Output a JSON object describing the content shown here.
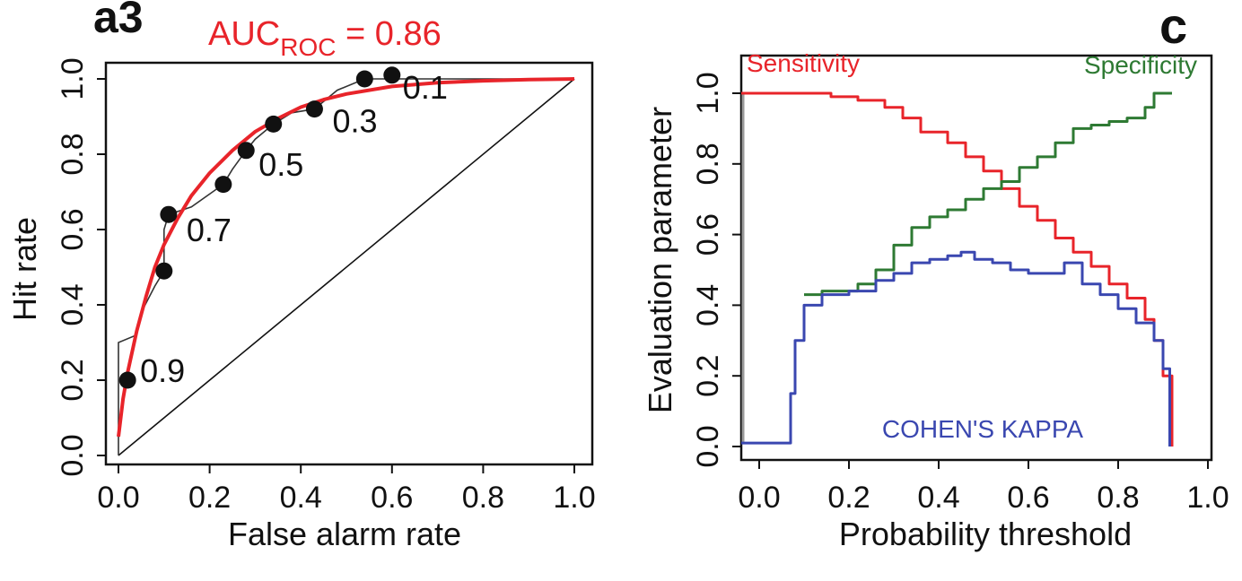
{
  "panels": {
    "a3_label": "a3",
    "c_label": "c"
  },
  "auc": {
    "prefix": "AUC",
    "subscript": "ROC",
    "suffix": " = 0.86"
  },
  "colors": {
    "red": "#e8242a",
    "green": "#2e7a33",
    "blue": "#3a47b0",
    "black": "#111111",
    "gray": "#666666"
  },
  "chart_data": [
    {
      "type": "line",
      "panel": "a3",
      "xlabel": "False alarm rate",
      "ylabel": "Hit rate",
      "xlim": [
        0,
        1
      ],
      "ylim": [
        0,
        1
      ],
      "xticks": [
        "0.0",
        "0.2",
        "0.4",
        "0.6",
        "0.8",
        "1.0"
      ],
      "yticks": [
        "0.0",
        "0.2",
        "0.4",
        "0.6",
        "0.8",
        "1.0"
      ],
      "annotation": "AUC_ROC = 0.86",
      "points": [
        {
          "x": 0.02,
          "y": 0.2,
          "label": "0.9"
        },
        {
          "x": 0.1,
          "y": 0.49,
          "label": ""
        },
        {
          "x": 0.11,
          "y": 0.64,
          "label": "0.7"
        },
        {
          "x": 0.23,
          "y": 0.72,
          "label": ""
        },
        {
          "x": 0.28,
          "y": 0.81,
          "label": "0.5"
        },
        {
          "x": 0.34,
          "y": 0.88,
          "label": ""
        },
        {
          "x": 0.43,
          "y": 0.92,
          "label": "0.3"
        },
        {
          "x": 0.54,
          "y": 1.0,
          "label": ""
        },
        {
          "x": 0.6,
          "y": 1.01,
          "label": "0.1"
        }
      ],
      "empirical_curve": [
        [
          0.0,
          0.0
        ],
        [
          0.0,
          0.3
        ],
        [
          0.04,
          0.32
        ],
        [
          0.05,
          0.38
        ],
        [
          0.08,
          0.45
        ],
        [
          0.1,
          0.49
        ],
        [
          0.1,
          0.6
        ],
        [
          0.11,
          0.64
        ],
        [
          0.16,
          0.66
        ],
        [
          0.23,
          0.72
        ],
        [
          0.25,
          0.76
        ],
        [
          0.28,
          0.81
        ],
        [
          0.3,
          0.84
        ],
        [
          0.34,
          0.88
        ],
        [
          0.38,
          0.91
        ],
        [
          0.43,
          0.92
        ],
        [
          0.48,
          0.97
        ],
        [
          0.54,
          1.0
        ],
        [
          0.6,
          1.0
        ],
        [
          1.0,
          1.0
        ]
      ],
      "fitted_curve": [
        [
          0.0,
          0.05
        ],
        [
          0.01,
          0.15
        ],
        [
          0.02,
          0.22
        ],
        [
          0.04,
          0.33
        ],
        [
          0.06,
          0.42
        ],
        [
          0.08,
          0.5
        ],
        [
          0.1,
          0.56
        ],
        [
          0.13,
          0.63
        ],
        [
          0.16,
          0.69
        ],
        [
          0.2,
          0.75
        ],
        [
          0.25,
          0.81
        ],
        [
          0.3,
          0.86
        ],
        [
          0.35,
          0.895
        ],
        [
          0.4,
          0.925
        ],
        [
          0.45,
          0.945
        ],
        [
          0.5,
          0.96
        ],
        [
          0.6,
          0.98
        ],
        [
          0.7,
          0.99
        ],
        [
          0.8,
          0.995
        ],
        [
          0.9,
          0.998
        ],
        [
          1.0,
          1.0
        ]
      ],
      "reference_line": [
        [
          0.0,
          0.0
        ],
        [
          1.0,
          1.0
        ]
      ]
    },
    {
      "type": "line",
      "panel": "c",
      "xlabel": "Probability threshold",
      "ylabel": "Evaluation parameter",
      "xlim": [
        0,
        1
      ],
      "ylim": [
        0,
        1
      ],
      "xticks": [
        "0.0",
        "0.2",
        "0.4",
        "0.6",
        "0.8",
        "1.0"
      ],
      "yticks": [
        "0.0",
        "0.2",
        "0.4",
        "0.6",
        "0.8",
        "1.0"
      ],
      "series": [
        {
          "name": "Sensitivity",
          "color": "red",
          "points": [
            [
              -0.04,
              1.0
            ],
            [
              0.1,
              1.0
            ],
            [
              0.16,
              0.99
            ],
            [
              0.22,
              0.98
            ],
            [
              0.28,
              0.96
            ],
            [
              0.32,
              0.93
            ],
            [
              0.36,
              0.89
            ],
            [
              0.42,
              0.86
            ],
            [
              0.46,
              0.82
            ],
            [
              0.5,
              0.78
            ],
            [
              0.54,
              0.73
            ],
            [
              0.58,
              0.68
            ],
            [
              0.62,
              0.64
            ],
            [
              0.66,
              0.59
            ],
            [
              0.7,
              0.55
            ],
            [
              0.74,
              0.51
            ],
            [
              0.78,
              0.46
            ],
            [
              0.82,
              0.42
            ],
            [
              0.86,
              0.36
            ],
            [
              0.88,
              0.3
            ],
            [
              0.9,
              0.2
            ],
            [
              0.92,
              0.0
            ]
          ]
        },
        {
          "name": "Specificity",
          "color": "green",
          "points": [
            [
              0.1,
              0.43
            ],
            [
              0.14,
              0.44
            ],
            [
              0.22,
              0.46
            ],
            [
              0.26,
              0.5
            ],
            [
              0.3,
              0.57
            ],
            [
              0.34,
              0.62
            ],
            [
              0.38,
              0.65
            ],
            [
              0.42,
              0.67
            ],
            [
              0.46,
              0.7
            ],
            [
              0.5,
              0.73
            ],
            [
              0.54,
              0.75
            ],
            [
              0.58,
              0.79
            ],
            [
              0.62,
              0.82
            ],
            [
              0.66,
              0.86
            ],
            [
              0.7,
              0.9
            ],
            [
              0.74,
              0.91
            ],
            [
              0.78,
              0.92
            ],
            [
              0.82,
              0.93
            ],
            [
              0.86,
              0.96
            ],
            [
              0.88,
              1.0
            ],
            [
              0.92,
              1.0
            ]
          ]
        },
        {
          "name": "COHEN'S KAPPA",
          "color": "blue",
          "points": [
            [
              -0.04,
              0.01
            ],
            [
              0.06,
              0.01
            ],
            [
              0.07,
              0.15
            ],
            [
              0.08,
              0.3
            ],
            [
              0.1,
              0.4
            ],
            [
              0.14,
              0.43
            ],
            [
              0.2,
              0.44
            ],
            [
              0.26,
              0.47
            ],
            [
              0.3,
              0.49
            ],
            [
              0.34,
              0.52
            ],
            [
              0.38,
              0.53
            ],
            [
              0.42,
              0.54
            ],
            [
              0.45,
              0.55
            ],
            [
              0.48,
              0.53
            ],
            [
              0.52,
              0.52
            ],
            [
              0.56,
              0.5
            ],
            [
              0.6,
              0.49
            ],
            [
              0.64,
              0.49
            ],
            [
              0.68,
              0.52
            ],
            [
              0.72,
              0.46
            ],
            [
              0.76,
              0.43
            ],
            [
              0.8,
              0.39
            ],
            [
              0.84,
              0.35
            ],
            [
              0.88,
              0.3
            ],
            [
              0.9,
              0.22
            ],
            [
              0.915,
              0.0
            ]
          ]
        }
      ]
    }
  ]
}
